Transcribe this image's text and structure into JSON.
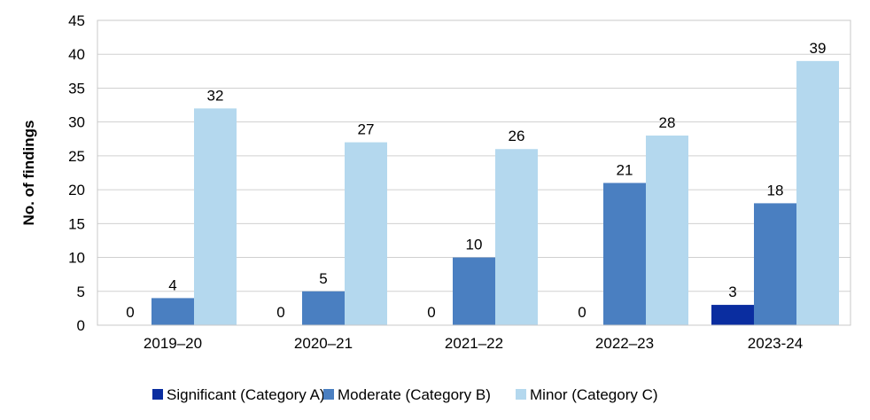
{
  "chart_data": {
    "type": "bar",
    "categories": [
      "2019–20",
      "2020–21",
      "2021–22",
      "2022–23",
      "2023-24"
    ],
    "series": [
      {
        "name": "Significant (Category A)",
        "values": [
          0,
          0,
          0,
          0,
          3
        ],
        "color": "#0A2DA0"
      },
      {
        "name": "Moderate (Category B)",
        "values": [
          4,
          5,
          10,
          21,
          18
        ],
        "color": "#4A7FC1"
      },
      {
        "name": "Minor (Category C)",
        "values": [
          32,
          27,
          26,
          28,
          39
        ],
        "color": "#B4D8EE"
      }
    ],
    "ylabel": "No. of findings",
    "ylim": [
      0,
      45
    ],
    "yticks": [
      0,
      5,
      10,
      15,
      20,
      25,
      30,
      35,
      40,
      45
    ],
    "grid": true,
    "legend_position": "bottom"
  }
}
